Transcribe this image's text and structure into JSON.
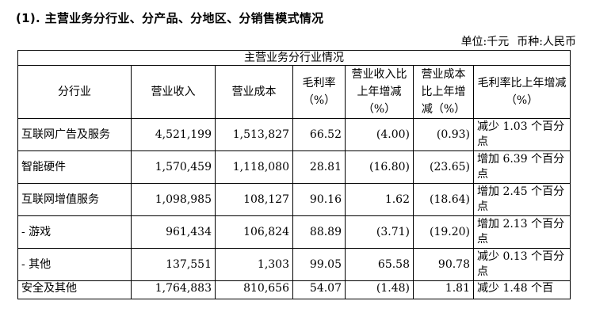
{
  "heading": "(1). 主营业务分行业、分产品、分地区、分销售模式情况",
  "unit": {
    "unit_label": "单位:千元",
    "currency_label": "币种:人民币"
  },
  "table": {
    "title": "主营业务分行业情况",
    "headers": [
      "分行业",
      "营业收入",
      "营业成本",
      "毛利率（%）",
      "营业收入比上年增减（%）",
      "营业成本比上年增减（%）",
      "毛利率比上年增减（%）"
    ],
    "rows": [
      [
        "互联网广告及服务",
        "4,521,199",
        "1,513,827",
        "66.52",
        "(4.00)",
        "(0.93)",
        "减少 1.03 个百分点"
      ],
      [
        "智能硬件",
        "1,570,459",
        "1,118,080",
        "28.81",
        "(16.80)",
        "(23.65)",
        "增加 6.39 个百分点"
      ],
      [
        "互联网增值服务",
        "1,098,985",
        "108,127",
        "90.16",
        "1.62",
        "(18.64)",
        "增加 2.45 个百分点"
      ],
      [
        "- 游戏",
        "961,434",
        "106,824",
        "88.89",
        "(3.71)",
        "(19.20)",
        "增加 2.13 个百分点"
      ],
      [
        "- 其他",
        "137,551",
        "1,303",
        "99.05",
        "65.58",
        "90.78",
        "减少 0.13 个百分点"
      ],
      [
        "安全及其他",
        "1,764,883",
        "810,656",
        "54.07",
        "(1.48)",
        "1.81",
        "减少 1.48 个百"
      ]
    ]
  }
}
